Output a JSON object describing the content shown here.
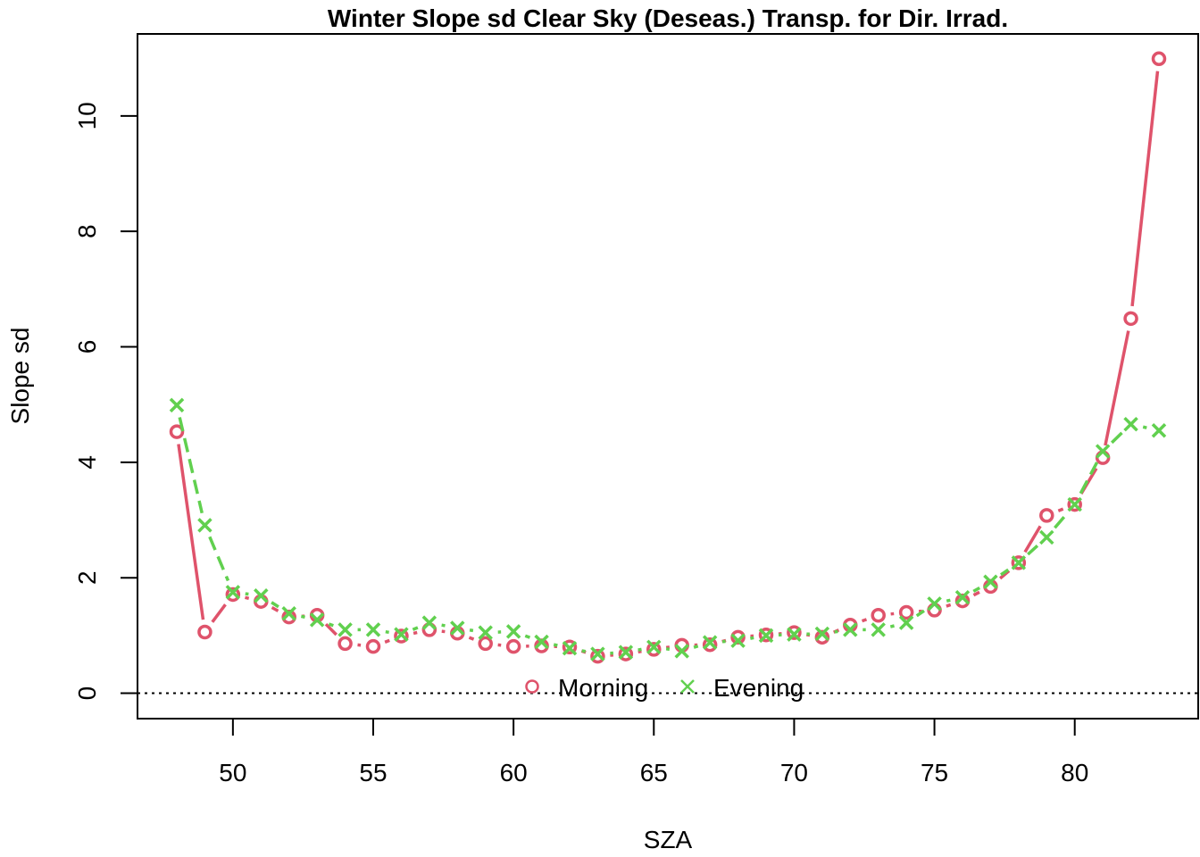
{
  "chart_data": {
    "type": "line",
    "title": "Winter Slope sd Clear Sky (Deseas.) Transp. for Dir. Irrad.",
    "xlabel": "SZA",
    "ylabel": "Slope sd",
    "xlim": [
      46.6,
      84.4
    ],
    "ylim": [
      -0.44,
      11.42
    ],
    "xticks": [
      50,
      55,
      60,
      65,
      70,
      75,
      80
    ],
    "yticks": [
      0,
      2,
      4,
      6,
      8,
      10
    ],
    "reference_line": {
      "y": 0,
      "style": "dotted"
    },
    "legend_position": "bottom-center",
    "series": [
      {
        "name": "Morning",
        "color": "#DF536B",
        "marker": "circle",
        "line": "solid",
        "x": [
          48,
          49,
          50,
          51,
          52,
          53,
          54,
          55,
          56,
          57,
          58,
          59,
          60,
          61,
          62,
          63,
          64,
          65,
          66,
          67,
          68,
          69,
          70,
          71,
          72,
          73,
          74,
          75,
          76,
          77,
          78,
          79,
          80,
          81,
          82,
          83
        ],
        "y": [
          4.53,
          1.06,
          1.71,
          1.59,
          1.32,
          1.35,
          0.86,
          0.81,
          0.99,
          1.1,
          1.04,
          0.86,
          0.81,
          0.82,
          0.8,
          0.64,
          0.68,
          0.76,
          0.83,
          0.84,
          0.97,
          1.01,
          1.05,
          0.97,
          1.18,
          1.35,
          1.4,
          1.44,
          1.6,
          1.85,
          2.26,
          3.08,
          3.27,
          4.08,
          6.49,
          10.99
        ]
      },
      {
        "name": "Evening",
        "color": "#61D04F",
        "marker": "cross",
        "line": "dashed",
        "x": [
          48,
          49,
          50,
          51,
          52,
          53,
          54,
          55,
          56,
          57,
          58,
          59,
          60,
          61,
          62,
          63,
          64,
          65,
          66,
          67,
          68,
          69,
          70,
          71,
          72,
          73,
          74,
          75,
          76,
          77,
          78,
          79,
          80,
          81,
          82,
          83
        ],
        "y": [
          4.99,
          2.91,
          1.75,
          1.69,
          1.38,
          1.27,
          1.1,
          1.1,
          1.02,
          1.22,
          1.13,
          1.05,
          1.07,
          0.89,
          0.78,
          0.68,
          0.71,
          0.8,
          0.73,
          0.88,
          0.91,
          1.0,
          1.02,
          1.03,
          1.1,
          1.1,
          1.22,
          1.55,
          1.66,
          1.93,
          2.26,
          2.7,
          3.27,
          4.19,
          4.66,
          4.55
        ]
      }
    ]
  }
}
